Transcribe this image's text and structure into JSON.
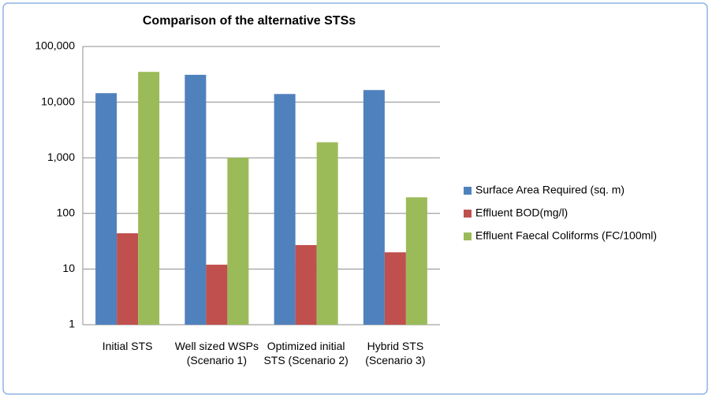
{
  "chart_data": {
    "type": "bar",
    "title": "Comparison of the alternative STSs",
    "categories": [
      "Initial STS",
      "Well sized WSPs (Scenario 1)",
      "Optimized initial STS (Scenario 2)",
      "Hybrid STS (Scenario 3)"
    ],
    "series": [
      {
        "name": "Surface Area Required (sq. m)",
        "color": "#4f81bd",
        "values": [
          14500,
          31000,
          14000,
          16500
        ]
      },
      {
        "name": "Effluent BOD(mg/l)",
        "color": "#c0504d",
        "values": [
          44,
          12,
          27,
          20
        ]
      },
      {
        "name": "Effluent Faecal Coliforms (FC/100ml)",
        "color": "#9bbb59",
        "values": [
          35000,
          1000,
          1900,
          195
        ]
      }
    ],
    "ylim": [
      1,
      100000
    ],
    "log_y": true,
    "yticks": [
      1,
      10,
      100,
      {
        "value": 1000,
        "label": "1,000"
      },
      {
        "value": 10000,
        "label": "10,000"
      },
      {
        "value": 100000,
        "label": "100,000"
      }
    ],
    "grid": true,
    "legend": "right"
  }
}
